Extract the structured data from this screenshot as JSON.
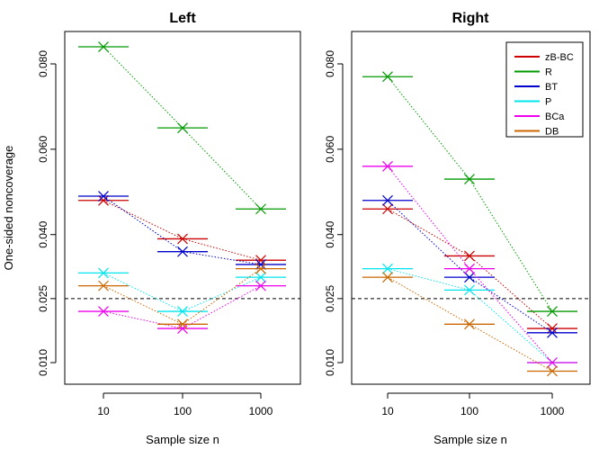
{
  "chart_data": [
    {
      "type": "line",
      "title": "Left",
      "xlabel": "Sample size n",
      "ylabel": "One-sided noncoverage",
      "x_scale": "log",
      "xlim": [
        5,
        2000
      ],
      "categories": [
        "10",
        "100",
        "1000"
      ],
      "y_ticks": [
        "0.010",
        "0.025",
        "0.040",
        "0.060",
        "0.080"
      ],
      "reference_line": 0.025,
      "series": [
        {
          "name": "zB-BC",
          "color": "#cc0000",
          "values": [
            0.048,
            0.039,
            0.034
          ]
        },
        {
          "name": "R",
          "color": "#009900",
          "values": [
            0.084,
            0.065,
            0.046
          ]
        },
        {
          "name": "BT",
          "color": "#0000cc",
          "values": [
            0.049,
            0.036,
            0.033
          ]
        },
        {
          "name": "P",
          "color": "#00e5ee",
          "values": [
            0.031,
            0.022,
            0.03
          ]
        },
        {
          "name": "BCa",
          "color": "#ee00ee",
          "values": [
            0.022,
            0.018,
            0.028
          ]
        },
        {
          "name": "DB",
          "color": "#cc6600",
          "values": [
            0.028,
            0.019,
            0.032
          ]
        }
      ]
    },
    {
      "type": "line",
      "title": "Right",
      "xlabel": "Sample size n",
      "ylabel": "",
      "x_scale": "log",
      "xlim": [
        5,
        2000
      ],
      "categories": [
        "10",
        "100",
        "1000"
      ],
      "y_ticks": [
        "0.010",
        "0.025",
        "0.040",
        "0.060",
        "0.080"
      ],
      "reference_line": 0.025,
      "legend_position": "top-right",
      "series": [
        {
          "name": "zB-BC",
          "color": "#cc0000",
          "values": [
            0.046,
            0.035,
            0.018
          ]
        },
        {
          "name": "R",
          "color": "#009900",
          "values": [
            0.077,
            0.053,
            0.022
          ]
        },
        {
          "name": "BT",
          "color": "#0000cc",
          "values": [
            0.048,
            0.03,
            0.017
          ]
        },
        {
          "name": "P",
          "color": "#00e5ee",
          "values": [
            0.032,
            0.027,
            0.01
          ]
        },
        {
          "name": "BCa",
          "color": "#ee00ee",
          "values": [
            0.056,
            0.032,
            0.01
          ]
        },
        {
          "name": "DB",
          "color": "#cc6600",
          "values": [
            0.03,
            0.019,
            0.008
          ]
        }
      ]
    }
  ]
}
